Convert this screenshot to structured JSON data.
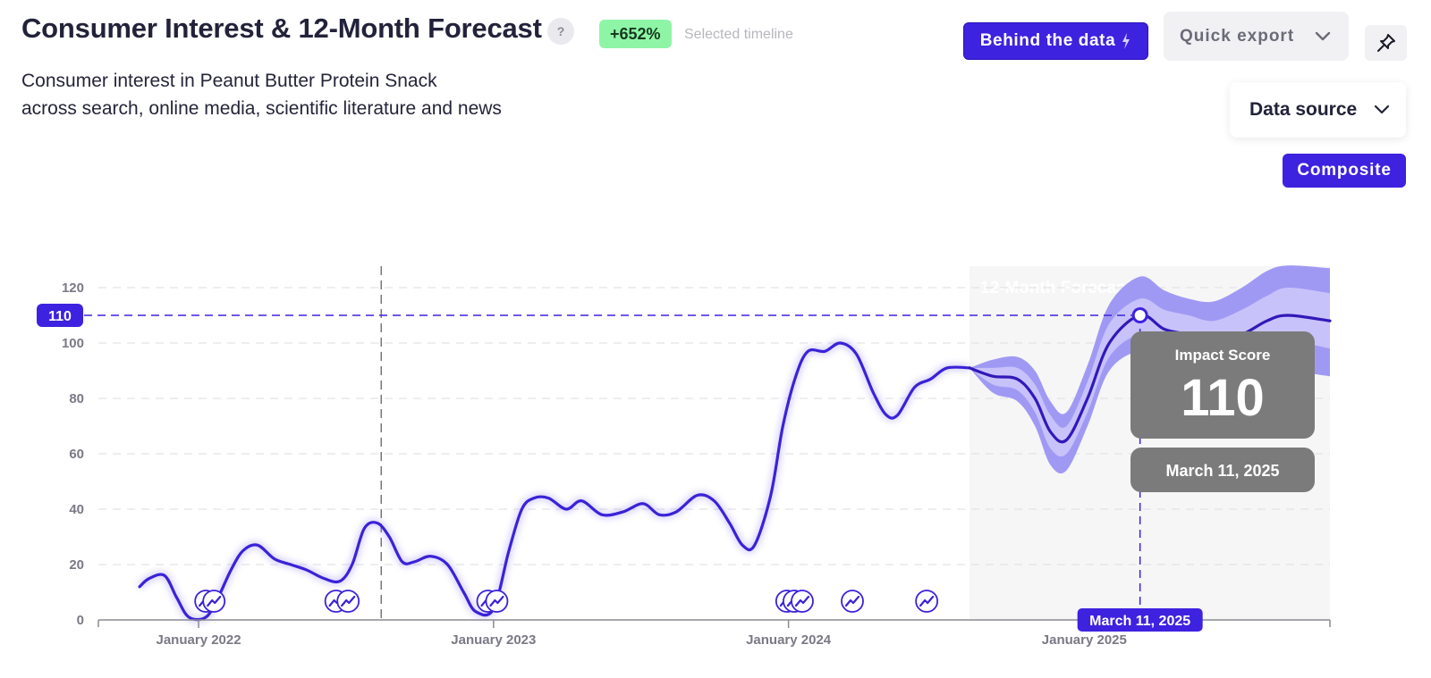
{
  "header": {
    "title": "Consumer Interest & 12-Month Forecast",
    "help_label": "?",
    "delta_badge": "+652%",
    "delta_note": "Selected timeline",
    "subtitle_line1": "Consumer interest in Peanut Butter Protein Snack",
    "subtitle_line2": "across search, online media, scientific literature and news"
  },
  "toolbar": {
    "behind_label": "Behind the data",
    "export_label": "Quick export",
    "data_source_label": "Data source",
    "composite_label": "Composite"
  },
  "colors": {
    "accent": "#3d22e0",
    "line": "#3a22d8",
    "band_outer": "#9b93f3",
    "band_inner": "#c9c4fa",
    "forecast_bg": "#f6f6f6",
    "tooltip_bg": "#7b7b7b",
    "positive_badge": "#8ef5a6"
  },
  "tooltip": {
    "label": "Impact Score",
    "value": "110",
    "date": "March 11, 2025"
  },
  "crosshair": {
    "y_value": 110,
    "y_label": "110",
    "x_label": "March 11, 2025",
    "x_date": "2025-03-11"
  },
  "chart_data": {
    "type": "line",
    "title": "Consumer Interest & 12-Month Forecast",
    "ylim": [
      0,
      120
    ],
    "yticks": [
      0,
      20,
      40,
      60,
      80,
      100,
      120
    ],
    "xlim": [
      "2021-08-30",
      "2025-11-01"
    ],
    "xticks": [
      {
        "date": "2022-01-01",
        "label": "January 2022"
      },
      {
        "date": "2023-01-01",
        "label": "January 2023"
      },
      {
        "date": "2024-01-01",
        "label": "January 2024"
      },
      {
        "date": "2025-01-01",
        "label": "January 2025"
      }
    ],
    "grid": true,
    "vertical_marker_date": "2022-08-15",
    "forecast_label": "12-Month Forecast",
    "forecast_start": "2024-08-12",
    "series": [
      {
        "points": [
          [
            "2021-10-20",
            12
          ],
          [
            "2021-11-01",
            15
          ],
          [
            "2021-11-20",
            16
          ],
          [
            "2021-12-05",
            8
          ],
          [
            "2021-12-20",
            1
          ],
          [
            "2022-01-10",
            1
          ],
          [
            "2022-01-25",
            8
          ],
          [
            "2022-02-10",
            18
          ],
          [
            "2022-02-25",
            25
          ],
          [
            "2022-03-15",
            27
          ],
          [
            "2022-04-05",
            22
          ],
          [
            "2022-04-25",
            20
          ],
          [
            "2022-05-15",
            18
          ],
          [
            "2022-06-05",
            15
          ],
          [
            "2022-06-25",
            14
          ],
          [
            "2022-07-10",
            20
          ],
          [
            "2022-07-25",
            33
          ],
          [
            "2022-08-10",
            35
          ],
          [
            "2022-08-25",
            30
          ],
          [
            "2022-09-10",
            21
          ],
          [
            "2022-09-25",
            21
          ],
          [
            "2022-10-15",
            23
          ],
          [
            "2022-11-05",
            20
          ],
          [
            "2022-11-25",
            10
          ],
          [
            "2022-12-10",
            3
          ],
          [
            "2023-01-01",
            4
          ],
          [
            "2023-01-20",
            25
          ],
          [
            "2023-02-05",
            40
          ],
          [
            "2023-02-20",
            44
          ],
          [
            "2023-03-10",
            44
          ],
          [
            "2023-04-01",
            40
          ],
          [
            "2023-04-20",
            43
          ],
          [
            "2023-05-15",
            38
          ],
          [
            "2023-06-10",
            39
          ],
          [
            "2023-07-05",
            42
          ],
          [
            "2023-07-25",
            38
          ],
          [
            "2023-08-15",
            39
          ],
          [
            "2023-09-10",
            45
          ],
          [
            "2023-10-01",
            43
          ],
          [
            "2023-10-20",
            35
          ],
          [
            "2023-11-05",
            27
          ],
          [
            "2023-11-20",
            27
          ],
          [
            "2023-12-10",
            45
          ],
          [
            "2023-12-25",
            70
          ],
          [
            "2024-01-10",
            88
          ],
          [
            "2024-01-25",
            97
          ],
          [
            "2024-02-15",
            97
          ],
          [
            "2024-03-05",
            100
          ],
          [
            "2024-03-25",
            96
          ],
          [
            "2024-04-15",
            82
          ],
          [
            "2024-05-01",
            74
          ],
          [
            "2024-05-15",
            74
          ],
          [
            "2024-06-05",
            84
          ],
          [
            "2024-06-25",
            87
          ],
          [
            "2024-07-15",
            91
          ],
          [
            "2024-08-12",
            91
          ]
        ]
      },
      {
        "name": "Forecast",
        "points": [
          [
            "2024-08-12",
            91
          ],
          [
            "2024-09-10",
            88
          ],
          [
            "2024-10-10",
            87
          ],
          [
            "2024-11-01",
            80
          ],
          [
            "2024-11-20",
            68
          ],
          [
            "2024-12-10",
            65
          ],
          [
            "2025-01-05",
            80
          ],
          [
            "2025-02-01",
            100
          ],
          [
            "2025-03-11",
            110
          ],
          [
            "2025-04-10",
            105
          ],
          [
            "2025-05-10",
            103
          ],
          [
            "2025-06-10",
            100
          ],
          [
            "2025-07-15",
            103
          ],
          [
            "2025-08-15",
            108
          ],
          [
            "2025-09-10",
            110
          ],
          [
            "2025-11-01",
            108
          ]
        ],
        "inner_band": [
          [
            [
              "2024-08-12",
              91,
              91
            ],
            [
              "2024-09-10",
              85,
              91
            ],
            [
              "2024-10-10",
              83,
              91
            ],
            [
              "2024-11-01",
              75,
              85
            ],
            [
              "2024-11-20",
              62,
              74
            ],
            [
              "2024-12-10",
              60,
              70
            ],
            [
              "2025-01-05",
              75,
              86
            ],
            [
              "2025-02-01",
              95,
              107
            ],
            [
              "2025-03-11",
              103,
              116
            ],
            [
              "2025-04-10",
              98,
              112
            ],
            [
              "2025-05-10",
              96,
              110
            ],
            [
              "2025-06-10",
              93,
              108
            ],
            [
              "2025-07-15",
              95,
              112
            ],
            [
              "2025-08-15",
              100,
              117
            ],
            [
              "2025-09-10",
              101,
              120
            ],
            [
              "2025-11-01",
              98,
              118
            ]
          ]
        ],
        "outer_band": [
          [
            [
              "2024-08-12",
              91,
              91
            ],
            [
              "2024-09-10",
              82,
              94
            ],
            [
              "2024-10-10",
              79,
              95
            ],
            [
              "2024-11-01",
              70,
              90
            ],
            [
              "2024-11-20",
              56,
              79
            ],
            [
              "2024-12-10",
              54,
              75
            ],
            [
              "2025-01-05",
              70,
              92
            ],
            [
              "2025-02-01",
              90,
              114
            ],
            [
              "2025-03-11",
              97,
              124
            ],
            [
              "2025-04-10",
              92,
              119
            ],
            [
              "2025-05-10",
              89,
              116
            ],
            [
              "2025-06-10",
              85,
              115
            ],
            [
              "2025-07-15",
              86,
              120
            ],
            [
              "2025-08-15",
              90,
              126
            ],
            [
              "2025-09-10",
              90,
              128
            ],
            [
              "2025-11-01",
              88,
              127
            ]
          ]
        ]
      }
    ],
    "event_marker_dates": [
      "2022-01-10",
      "2022-01-20",
      "2022-06-20",
      "2022-07-05",
      "2022-12-25",
      "2023-01-05",
      "2023-12-30",
      "2024-01-08",
      "2024-01-18",
      "2024-03-20",
      "2024-06-20"
    ]
  }
}
